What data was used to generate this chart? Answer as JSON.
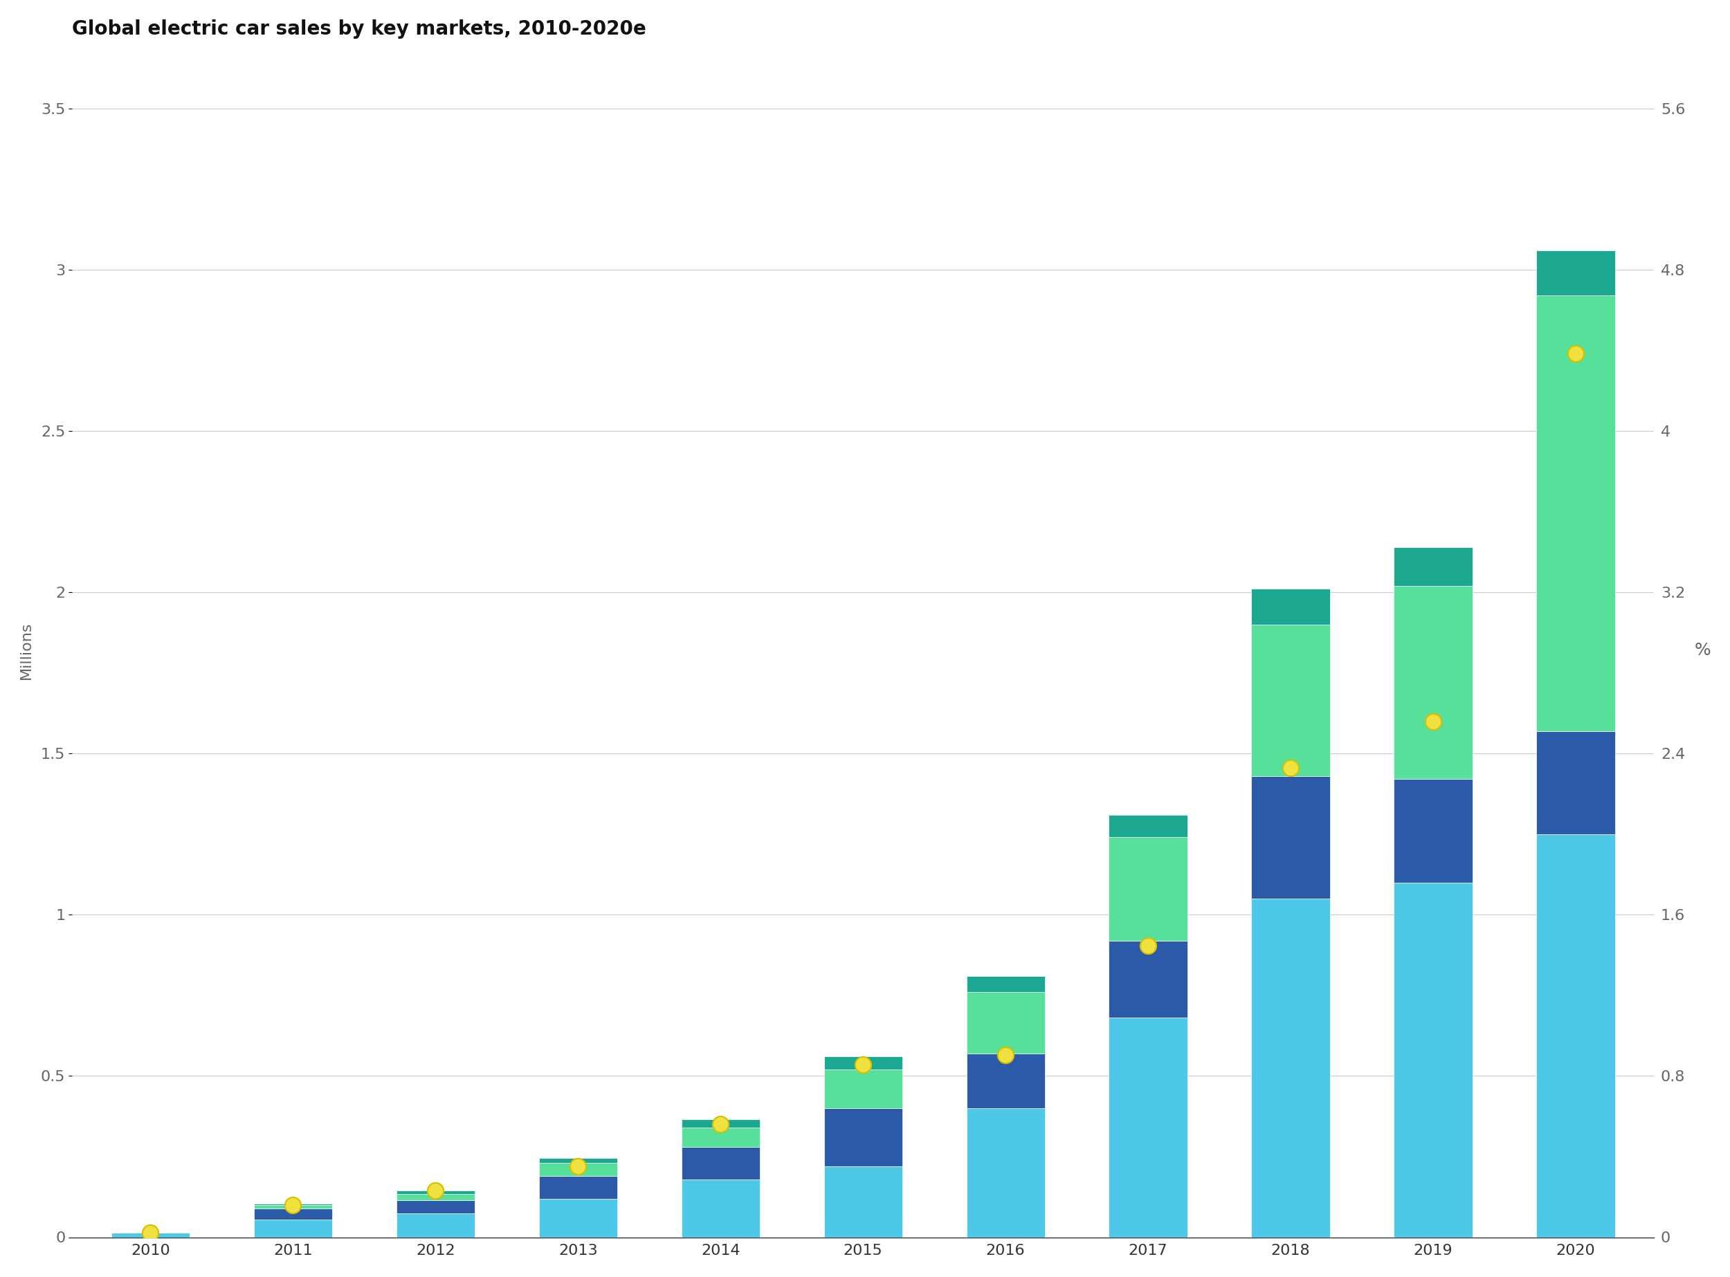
{
  "title": "Global electric car sales by key markets, 2010-2020e",
  "years": [
    2010,
    2011,
    2012,
    2013,
    2014,
    2015,
    2016,
    2017,
    2018,
    2019,
    2020
  ],
  "segments": {
    "cyan": [
      0.013,
      0.055,
      0.075,
      0.12,
      0.18,
      0.22,
      0.4,
      0.68,
      1.05,
      1.1,
      1.25
    ],
    "dark_blue": [
      0.0,
      0.035,
      0.04,
      0.07,
      0.1,
      0.18,
      0.17,
      0.24,
      0.38,
      0.32,
      0.32
    ],
    "bright_green": [
      0.0,
      0.01,
      0.02,
      0.04,
      0.06,
      0.12,
      0.19,
      0.32,
      0.47,
      0.6,
      1.35
    ],
    "dark_teal": [
      0.0,
      0.005,
      0.01,
      0.015,
      0.025,
      0.04,
      0.05,
      0.07,
      0.11,
      0.12,
      0.14
    ]
  },
  "dot_values": [
    0.013,
    0.1,
    0.145,
    0.22,
    0.35,
    0.535,
    0.565,
    0.905,
    1.455,
    1.6,
    2.74
  ],
  "colors": {
    "cyan": "#4DC8E8",
    "dark_blue": "#2B5BA8",
    "bright_green": "#56E09A",
    "dark_teal": "#1CA890",
    "dot_fill": "#F0E040",
    "dot_edge": "#D4C000"
  },
  "ylabel_left": "Millions",
  "ylabel_right": "%",
  "ylim_left": [
    0,
    3.64
  ],
  "ylim_right": [
    0,
    5.824
  ],
  "yticks_left": [
    0,
    0.5,
    1.0,
    1.5,
    2.0,
    2.5,
    3.0,
    3.5
  ],
  "yticks_right": [
    0,
    0.8,
    1.6,
    2.4,
    3.2,
    4.0,
    4.8,
    5.6
  ],
  "grid_color": "#CCCCCC",
  "background_color": "#FFFFFF",
  "title_fontsize": 20,
  "axis_label_fontsize": 16,
  "tick_fontsize": 16,
  "bar_width": 0.55,
  "bar_edge_color": "#FFFFFF",
  "bar_edge_width": 0.5
}
